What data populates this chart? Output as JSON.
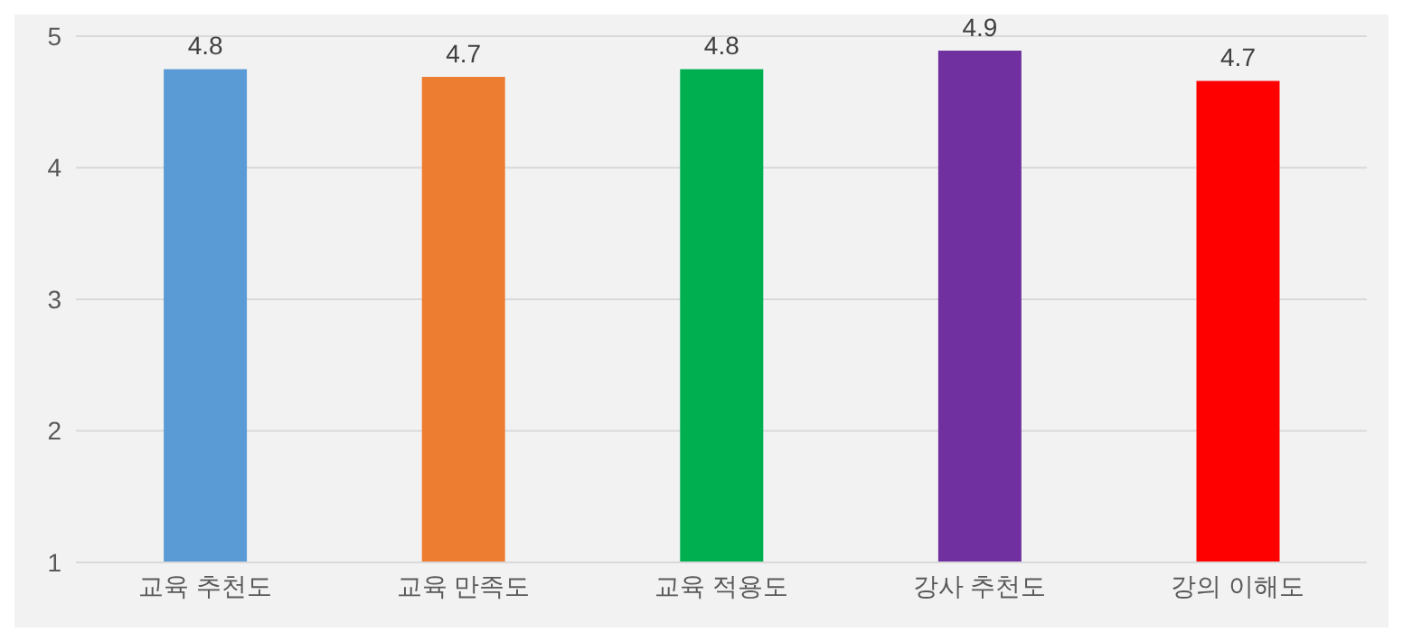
{
  "chart_data": {
    "type": "bar",
    "categories": [
      "교육 추천도",
      "교육 만족도",
      "교육 적용도",
      "강사 추천도",
      "강의 이해도"
    ],
    "values": [
      4.75,
      4.69,
      4.75,
      4.89,
      4.66
    ],
    "colors": [
      "#5b9bd5",
      "#ed7d31",
      "#00b050",
      "#7030a0",
      "#ff0000"
    ],
    "value_labels": [
      "4.8",
      "4.7",
      "4.8",
      "4.9",
      "4.7"
    ],
    "ylim": [
      1,
      5
    ],
    "yticks": [
      1,
      2,
      3,
      4,
      5
    ],
    "grid": "y",
    "legend": false
  }
}
